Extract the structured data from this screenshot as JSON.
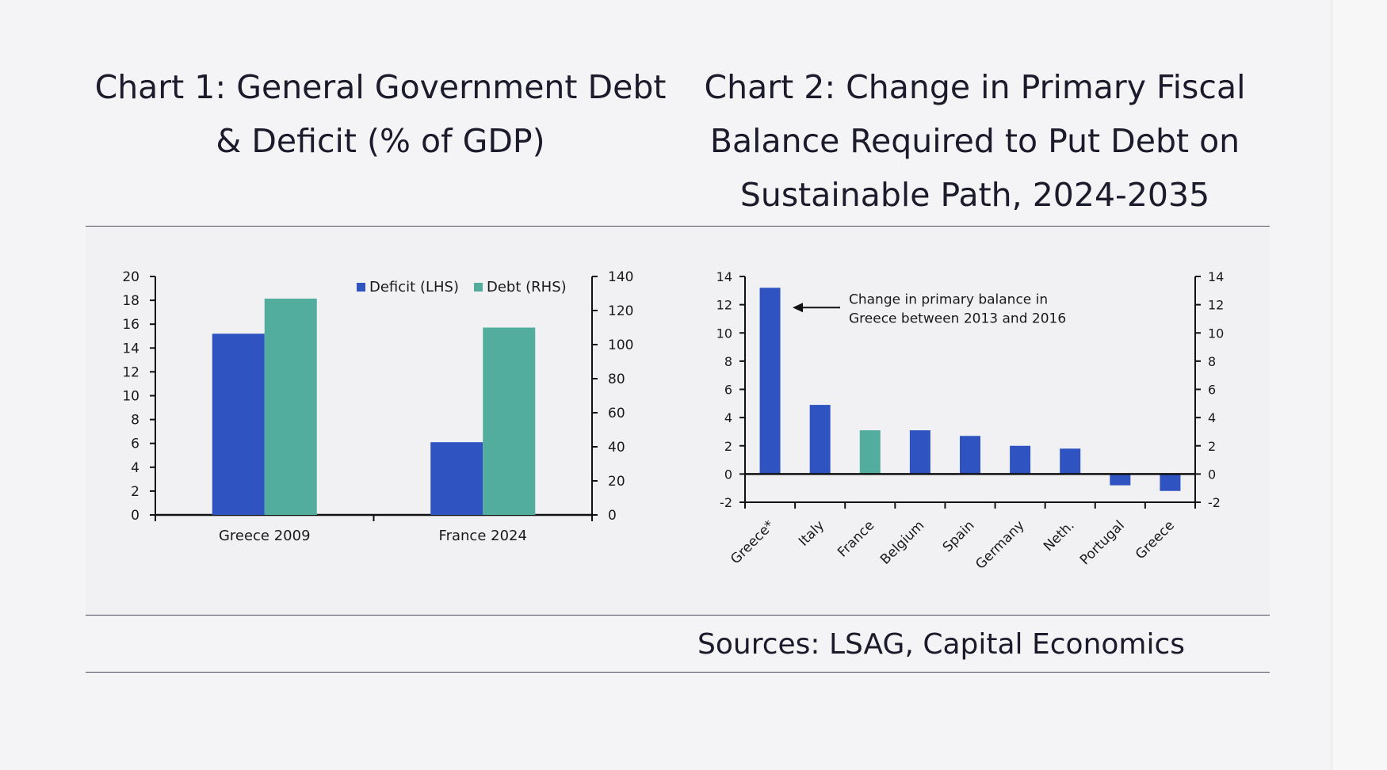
{
  "colors": {
    "blue": "#2f53c1",
    "teal": "#52ad9f",
    "text": "#1b1b2b",
    "background": "#f4f4f6"
  },
  "chart1": {
    "title": "Chart 1: General Government Debt & Deficit (% of GDP)"
  },
  "chart2": {
    "title": "Chart 2: Change in Primary Fiscal Balance Required to Put Debt on Sustainable Path, 2024-2035",
    "annotation_line1": "Change in primary balance in",
    "annotation_line2": "Greece between 2013 and 2016"
  },
  "sources": "Sources: LSAG, Capital Economics",
  "chart_data": [
    {
      "type": "bar",
      "title": "Chart 1: General Government Debt & Deficit (% of GDP)",
      "categories": [
        "Greece 2009",
        "France 2024"
      ],
      "series": [
        {
          "name": "Deficit (LHS)",
          "axis": "left",
          "color": "#2f53c1",
          "values": [
            15.2,
            6.1
          ]
        },
        {
          "name": "Debt (RHS)",
          "axis": "right",
          "color": "#52ad9f",
          "values": [
            127,
            110
          ]
        }
      ],
      "ylim_left": [
        0,
        20
      ],
      "yticks_left": [
        0,
        2,
        4,
        6,
        8,
        10,
        12,
        14,
        16,
        18,
        20
      ],
      "ylim_right": [
        0,
        140
      ],
      "yticks_right": [
        0,
        20,
        40,
        60,
        80,
        100,
        120,
        140
      ],
      "legend": "top"
    },
    {
      "type": "bar",
      "title": "Chart 2: Change in Primary Fiscal Balance Required to Put Debt on Sustainable Path, 2024-2035",
      "categories": [
        "Greece*",
        "Italy",
        "France",
        "Belgium",
        "Spain",
        "Germany",
        "Neth.",
        "Portugal",
        "Greece"
      ],
      "values": [
        13.2,
        4.9,
        3.1,
        3.1,
        2.7,
        2.0,
        1.8,
        -0.8,
        -1.2
      ],
      "colors": [
        "#2f53c1",
        "#2f53c1",
        "#52ad9f",
        "#2f53c1",
        "#2f53c1",
        "#2f53c1",
        "#2f53c1",
        "#2f53c1",
        "#2f53c1"
      ],
      "ylim": [
        -2,
        14
      ],
      "yticks": [
        -2,
        0,
        2,
        4,
        6,
        8,
        10,
        12,
        14
      ],
      "annotation": "Change in primary balance in Greece between 2013 and 2016",
      "annotation_target": "Greece*"
    }
  ]
}
